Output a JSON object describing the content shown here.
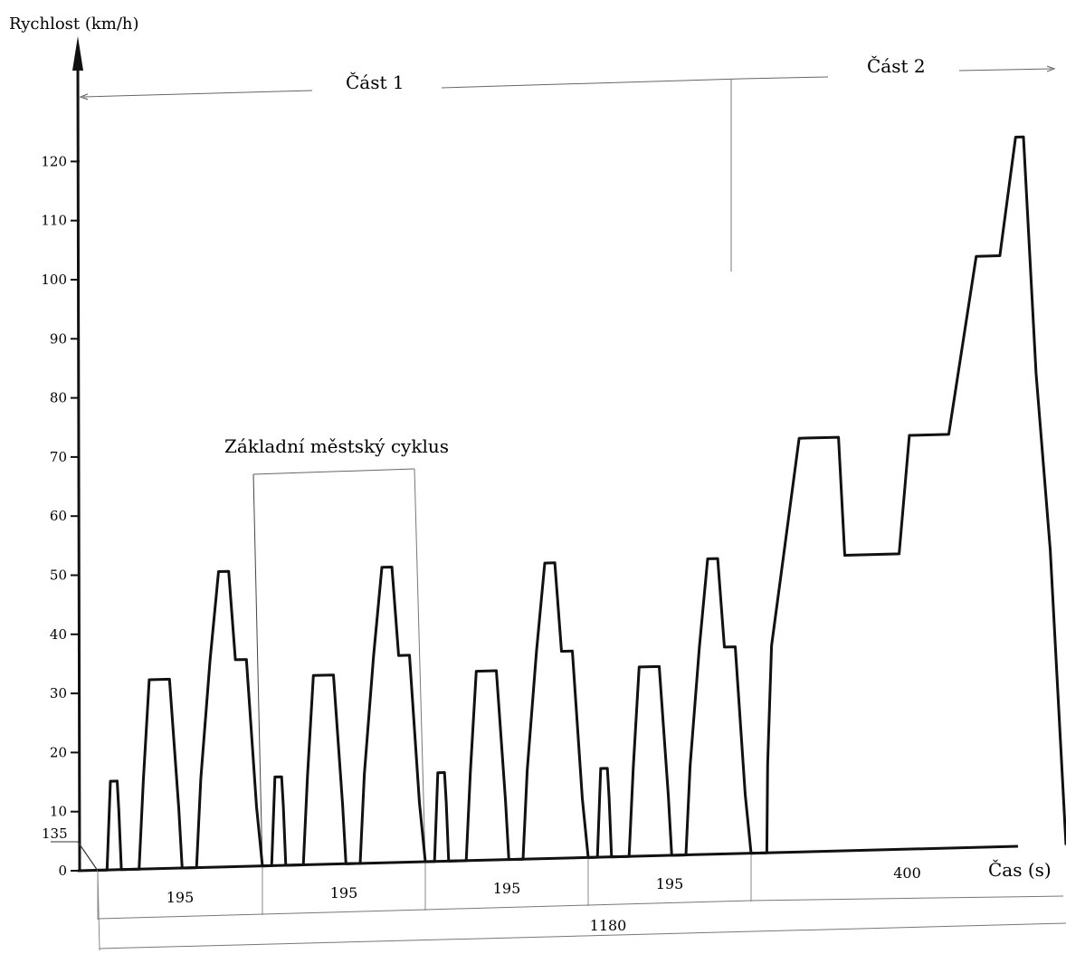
{
  "chart_data": {
    "type": "line",
    "title": "",
    "xlabel": "Čas (s)",
    "ylabel": "Rychlost (km/h)",
    "ylim": [
      0,
      125
    ],
    "yticks": [
      0,
      10,
      20,
      30,
      40,
      50,
      60,
      70,
      80,
      90,
      100,
      110,
      120
    ],
    "grid": false,
    "offset_label": "135",
    "section_labels": [
      "Část 1",
      "Část 2"
    ],
    "annotation": "Základní městský cyklus",
    "segment_durations": [
      "195",
      "195",
      "195",
      "195",
      "400"
    ],
    "total_duration": "1180",
    "urban_cycle": {
      "duration_s": 195,
      "repeats": 4,
      "points": [
        [
          0,
          0
        ],
        [
          11,
          0
        ],
        [
          15,
          15
        ],
        [
          23,
          15
        ],
        [
          25,
          10
        ],
        [
          28,
          0
        ],
        [
          49,
          0
        ],
        [
          54,
          15
        ],
        [
          61,
          32
        ],
        [
          85,
          32
        ],
        [
          96,
          10
        ],
        [
          100,
          0
        ],
        [
          117,
          0
        ],
        [
          122,
          15
        ],
        [
          133,
          35
        ],
        [
          143,
          50
        ],
        [
          155,
          50
        ],
        [
          163,
          35
        ],
        [
          176,
          35
        ],
        [
          188,
          10
        ],
        [
          195,
          0
        ]
      ]
    },
    "extra_urban_cycle": {
      "duration_s": 400,
      "points": [
        [
          0,
          0
        ],
        [
          20,
          0
        ],
        [
          21,
          15
        ],
        [
          26,
          35
        ],
        [
          41,
          50
        ],
        [
          61,
          70
        ],
        [
          111,
          70
        ],
        [
          119,
          50
        ],
        [
          188,
          50
        ],
        [
          201,
          70
        ],
        [
          251,
          70
        ],
        [
          286,
          100
        ],
        [
          316,
          100
        ],
        [
          336,
          120
        ],
        [
          346,
          120
        ],
        [
          362,
          80
        ],
        [
          380,
          50
        ],
        [
          400,
          0
        ]
      ]
    }
  }
}
